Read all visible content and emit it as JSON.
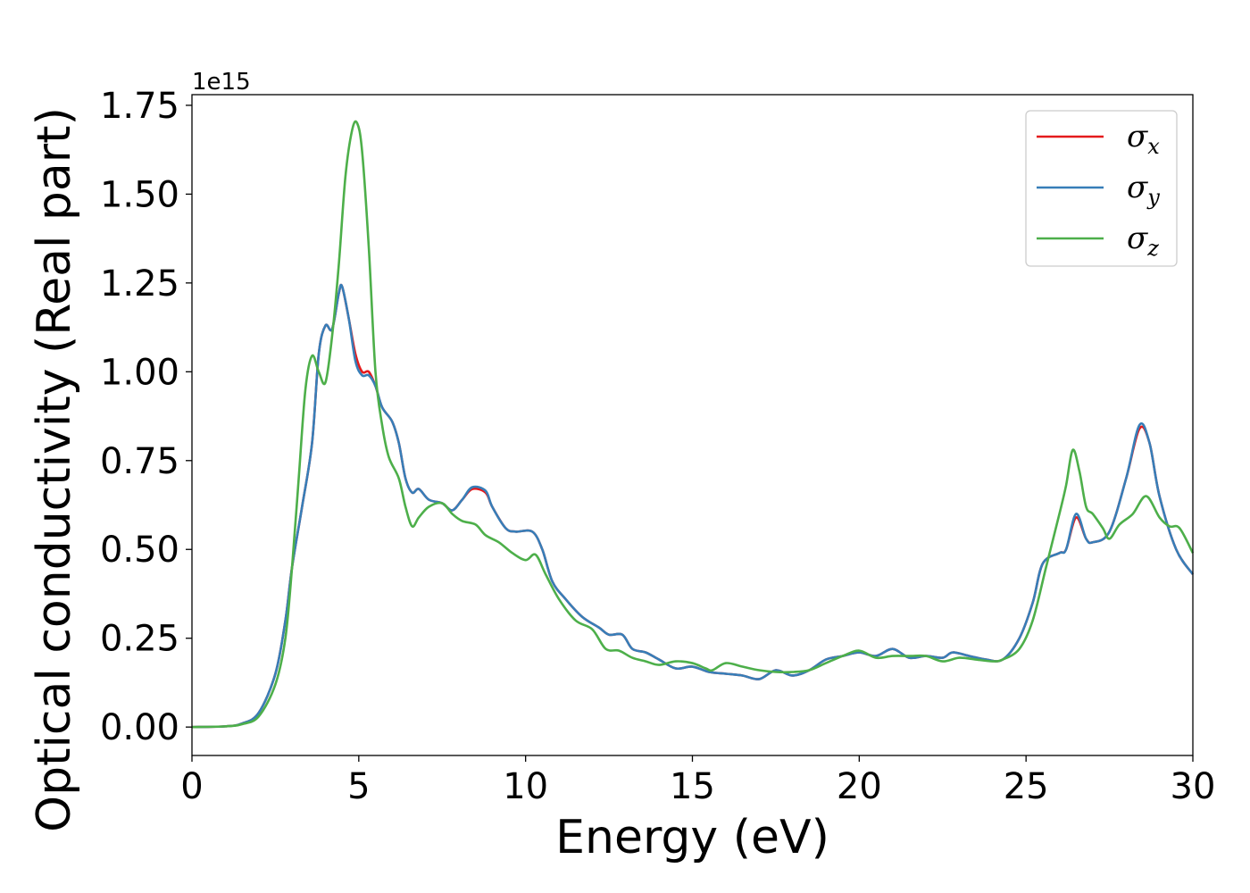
{
  "chart_data": {
    "type": "line",
    "xlabel": "Energy (eV)",
    "ylabel": "Optical conductivity (Real part)",
    "y_offset_label": "1e15",
    "xlim": [
      0,
      30
    ],
    "ylim": [
      -0.08,
      1.78
    ],
    "x_ticks": [
      0,
      5,
      10,
      15,
      20,
      25,
      30
    ],
    "x_tick_labels": [
      "0",
      "5",
      "10",
      "15",
      "20",
      "25",
      "30"
    ],
    "y_ticks": [
      0.0,
      0.25,
      0.5,
      0.75,
      1.0,
      1.25,
      1.5,
      1.75
    ],
    "y_tick_labels": [
      "0.00",
      "0.25",
      "0.50",
      "0.75",
      "1.00",
      "1.25",
      "1.50",
      "1.75"
    ],
    "grid": false,
    "legend_position": "top-right",
    "series": [
      {
        "name": "σ",
        "subscript": "x",
        "color": "#e41a1c",
        "points": [
          [
            0,
            0.0
          ],
          [
            1,
            0.002
          ],
          [
            1.5,
            0.01
          ],
          [
            2,
            0.04
          ],
          [
            2.5,
            0.15
          ],
          [
            2.8,
            0.3
          ],
          [
            3,
            0.45
          ],
          [
            3.3,
            0.62
          ],
          [
            3.6,
            0.8
          ],
          [
            3.8,
            1.05
          ],
          [
            4,
            1.13
          ],
          [
            4.2,
            1.12
          ],
          [
            4.4,
            1.22
          ],
          [
            4.5,
            1.24
          ],
          [
            4.7,
            1.15
          ],
          [
            4.9,
            1.05
          ],
          [
            5.1,
            1.0
          ],
          [
            5.3,
            1.0
          ],
          [
            5.5,
            0.96
          ],
          [
            5.7,
            0.9
          ],
          [
            6,
            0.86
          ],
          [
            6.2,
            0.8
          ],
          [
            6.4,
            0.7
          ],
          [
            6.6,
            0.66
          ],
          [
            6.8,
            0.67
          ],
          [
            7.1,
            0.64
          ],
          [
            7.5,
            0.63
          ],
          [
            7.8,
            0.61
          ],
          [
            8.1,
            0.64
          ],
          [
            8.4,
            0.67
          ],
          [
            8.8,
            0.66
          ],
          [
            9,
            0.62
          ],
          [
            9.4,
            0.56
          ],
          [
            9.7,
            0.55
          ],
          [
            10.2,
            0.55
          ],
          [
            10.5,
            0.5
          ],
          [
            10.8,
            0.41
          ],
          [
            11.2,
            0.36
          ],
          [
            11.7,
            0.31
          ],
          [
            12.2,
            0.28
          ],
          [
            12.5,
            0.26
          ],
          [
            12.9,
            0.26
          ],
          [
            13.2,
            0.22
          ],
          [
            13.6,
            0.21
          ],
          [
            14,
            0.19
          ],
          [
            14.5,
            0.165
          ],
          [
            15,
            0.17
          ],
          [
            15.5,
            0.155
          ],
          [
            16,
            0.15
          ],
          [
            16.5,
            0.145
          ],
          [
            17,
            0.135
          ],
          [
            17.5,
            0.16
          ],
          [
            18,
            0.145
          ],
          [
            18.5,
            0.16
          ],
          [
            19,
            0.19
          ],
          [
            19.5,
            0.2
          ],
          [
            20,
            0.21
          ],
          [
            20.5,
            0.2
          ],
          [
            21,
            0.22
          ],
          [
            21.5,
            0.195
          ],
          [
            22,
            0.2
          ],
          [
            22.5,
            0.195
          ],
          [
            22.8,
            0.21
          ],
          [
            23.3,
            0.2
          ],
          [
            23.8,
            0.19
          ],
          [
            24.3,
            0.19
          ],
          [
            24.8,
            0.25
          ],
          [
            25.2,
            0.35
          ],
          [
            25.5,
            0.46
          ],
          [
            26,
            0.49
          ],
          [
            26.2,
            0.5
          ],
          [
            26.5,
            0.59
          ],
          [
            26.8,
            0.53
          ],
          [
            27,
            0.52
          ],
          [
            27.5,
            0.55
          ],
          [
            28,
            0.7
          ],
          [
            28.4,
            0.84
          ],
          [
            28.7,
            0.8
          ],
          [
            29,
            0.65
          ],
          [
            29.5,
            0.5
          ],
          [
            30,
            0.43
          ]
        ]
      },
      {
        "name": "σ",
        "subscript": "y",
        "color": "#377eb8",
        "points": [
          [
            0,
            0.0
          ],
          [
            1,
            0.002
          ],
          [
            1.5,
            0.01
          ],
          [
            2,
            0.04
          ],
          [
            2.5,
            0.15
          ],
          [
            2.8,
            0.3
          ],
          [
            3,
            0.45
          ],
          [
            3.3,
            0.62
          ],
          [
            3.6,
            0.8
          ],
          [
            3.8,
            1.05
          ],
          [
            4,
            1.13
          ],
          [
            4.2,
            1.12
          ],
          [
            4.4,
            1.22
          ],
          [
            4.5,
            1.24
          ],
          [
            4.7,
            1.15
          ],
          [
            4.9,
            1.03
          ],
          [
            5.1,
            0.99
          ],
          [
            5.3,
            0.99
          ],
          [
            5.5,
            0.96
          ],
          [
            5.7,
            0.9
          ],
          [
            6,
            0.86
          ],
          [
            6.2,
            0.8
          ],
          [
            6.4,
            0.7
          ],
          [
            6.6,
            0.66
          ],
          [
            6.8,
            0.67
          ],
          [
            7.1,
            0.64
          ],
          [
            7.5,
            0.63
          ],
          [
            7.8,
            0.61
          ],
          [
            8.1,
            0.64
          ],
          [
            8.4,
            0.675
          ],
          [
            8.8,
            0.665
          ],
          [
            9,
            0.62
          ],
          [
            9.4,
            0.56
          ],
          [
            9.7,
            0.55
          ],
          [
            10.2,
            0.55
          ],
          [
            10.5,
            0.5
          ],
          [
            10.8,
            0.41
          ],
          [
            11.2,
            0.36
          ],
          [
            11.7,
            0.31
          ],
          [
            12.2,
            0.28
          ],
          [
            12.5,
            0.26
          ],
          [
            12.9,
            0.26
          ],
          [
            13.2,
            0.22
          ],
          [
            13.6,
            0.21
          ],
          [
            14,
            0.19
          ],
          [
            14.5,
            0.165
          ],
          [
            15,
            0.17
          ],
          [
            15.5,
            0.155
          ],
          [
            16,
            0.15
          ],
          [
            16.5,
            0.145
          ],
          [
            17,
            0.135
          ],
          [
            17.5,
            0.16
          ],
          [
            18,
            0.145
          ],
          [
            18.5,
            0.16
          ],
          [
            19,
            0.19
          ],
          [
            19.5,
            0.2
          ],
          [
            20,
            0.21
          ],
          [
            20.5,
            0.2
          ],
          [
            21,
            0.22
          ],
          [
            21.5,
            0.195
          ],
          [
            22,
            0.2
          ],
          [
            22.5,
            0.195
          ],
          [
            22.8,
            0.21
          ],
          [
            23.3,
            0.2
          ],
          [
            23.8,
            0.19
          ],
          [
            24.3,
            0.19
          ],
          [
            24.8,
            0.25
          ],
          [
            25.2,
            0.35
          ],
          [
            25.5,
            0.46
          ],
          [
            26,
            0.49
          ],
          [
            26.2,
            0.5
          ],
          [
            26.5,
            0.6
          ],
          [
            26.8,
            0.53
          ],
          [
            27,
            0.52
          ],
          [
            27.5,
            0.55
          ],
          [
            28,
            0.7
          ],
          [
            28.4,
            0.85
          ],
          [
            28.7,
            0.8
          ],
          [
            29,
            0.65
          ],
          [
            29.5,
            0.5
          ],
          [
            30,
            0.43
          ]
        ]
      },
      {
        "name": "σ",
        "subscript": "z",
        "color": "#4daf4a",
        "points": [
          [
            0,
            0.0
          ],
          [
            1,
            0.002
          ],
          [
            1.5,
            0.008
          ],
          [
            2,
            0.03
          ],
          [
            2.5,
            0.12
          ],
          [
            2.8,
            0.25
          ],
          [
            3,
            0.45
          ],
          [
            3.2,
            0.7
          ],
          [
            3.4,
            0.95
          ],
          [
            3.6,
            1.045
          ],
          [
            3.8,
            1.0
          ],
          [
            4,
            0.97
          ],
          [
            4.2,
            1.1
          ],
          [
            4.4,
            1.3
          ],
          [
            4.6,
            1.55
          ],
          [
            4.8,
            1.68
          ],
          [
            4.95,
            1.7
          ],
          [
            5.1,
            1.62
          ],
          [
            5.3,
            1.35
          ],
          [
            5.5,
            1.0
          ],
          [
            5.7,
            0.85
          ],
          [
            5.9,
            0.76
          ],
          [
            6.2,
            0.7
          ],
          [
            6.4,
            0.62
          ],
          [
            6.6,
            0.565
          ],
          [
            6.8,
            0.59
          ],
          [
            7.1,
            0.62
          ],
          [
            7.5,
            0.63
          ],
          [
            7.8,
            0.6
          ],
          [
            8.1,
            0.58
          ],
          [
            8.5,
            0.57
          ],
          [
            8.8,
            0.54
          ],
          [
            9.2,
            0.52
          ],
          [
            9.6,
            0.49
          ],
          [
            10,
            0.47
          ],
          [
            10.3,
            0.485
          ],
          [
            10.6,
            0.43
          ],
          [
            11,
            0.36
          ],
          [
            11.5,
            0.3
          ],
          [
            12,
            0.275
          ],
          [
            12.4,
            0.22
          ],
          [
            12.8,
            0.215
          ],
          [
            13.2,
            0.195
          ],
          [
            13.6,
            0.185
          ],
          [
            14,
            0.175
          ],
          [
            14.5,
            0.185
          ],
          [
            15,
            0.18
          ],
          [
            15.4,
            0.165
          ],
          [
            15.6,
            0.16
          ],
          [
            16,
            0.18
          ],
          [
            16.5,
            0.17
          ],
          [
            17,
            0.16
          ],
          [
            17.5,
            0.155
          ],
          [
            18,
            0.155
          ],
          [
            18.5,
            0.16
          ],
          [
            19,
            0.18
          ],
          [
            19.5,
            0.2
          ],
          [
            20,
            0.215
          ],
          [
            20.5,
            0.195
          ],
          [
            21,
            0.2
          ],
          [
            21.5,
            0.2
          ],
          [
            22,
            0.2
          ],
          [
            22.5,
            0.185
          ],
          [
            23,
            0.195
          ],
          [
            23.5,
            0.19
          ],
          [
            24,
            0.185
          ],
          [
            24.3,
            0.19
          ],
          [
            24.8,
            0.22
          ],
          [
            25.2,
            0.3
          ],
          [
            25.6,
            0.45
          ],
          [
            26,
            0.6
          ],
          [
            26.2,
            0.68
          ],
          [
            26.4,
            0.78
          ],
          [
            26.6,
            0.72
          ],
          [
            26.8,
            0.62
          ],
          [
            27,
            0.6
          ],
          [
            27.3,
            0.56
          ],
          [
            27.5,
            0.53
          ],
          [
            27.8,
            0.57
          ],
          [
            28.2,
            0.6
          ],
          [
            28.6,
            0.65
          ],
          [
            29,
            0.59
          ],
          [
            29.3,
            0.565
          ],
          [
            29.6,
            0.56
          ],
          [
            30,
            0.49
          ]
        ]
      }
    ]
  }
}
